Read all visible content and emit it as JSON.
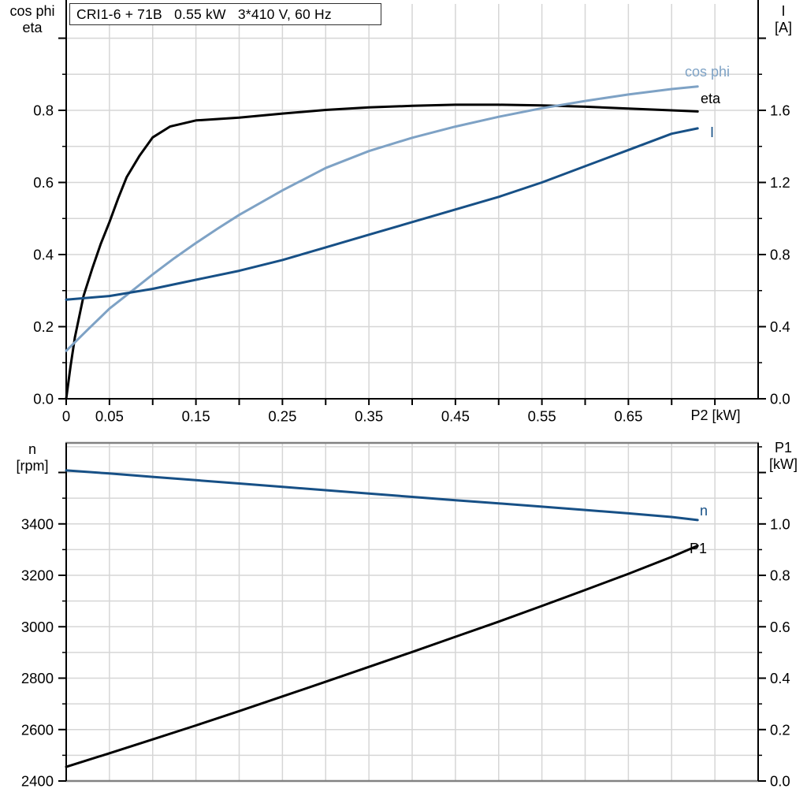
{
  "colors": {
    "eta_curve": "#000000",
    "cos_phi_curve": "#7ea2c5",
    "current_curve": "#175086",
    "speed_curve": "#175086",
    "p1_curve": "#000000",
    "grid": "#d6d6d6",
    "border_gray": "#828282",
    "axis_black": "#000000"
  },
  "chart_data": [
    {
      "type": "line",
      "title": "CRI1-6 + 71B   0.55 kW   3*410 V, 60 Hz",
      "xlabel": "P2 [kW]",
      "xlim": [
        0,
        0.8
      ],
      "ylim_left": [
        0,
        1.0951
      ],
      "ylim_right": [
        0,
        2.1902
      ],
      "legend_position": "curve-end-labels",
      "grid": true,
      "axes": {
        "x": {
          "label": "P2 [kW]",
          "ticks": [
            {
              "v": 0,
              "l": "0"
            },
            {
              "v": 0.05,
              "l": "0.05"
            },
            {
              "v": 0.1,
              "l": ""
            },
            {
              "v": 0.15,
              "l": "0.15"
            },
            {
              "v": 0.2,
              "l": ""
            },
            {
              "v": 0.25,
              "l": "0.25"
            },
            {
              "v": 0.3,
              "l": ""
            },
            {
              "v": 0.35,
              "l": "0.35"
            },
            {
              "v": 0.4,
              "l": ""
            },
            {
              "v": 0.45,
              "l": "0.45"
            },
            {
              "v": 0.5,
              "l": ""
            },
            {
              "v": 0.55,
              "l": "0.55"
            },
            {
              "v": 0.6,
              "l": ""
            },
            {
              "v": 0.65,
              "l": "0.65"
            },
            {
              "v": 0.7,
              "l": ""
            },
            {
              "v": 0.75,
              "l": ""
            }
          ]
        },
        "left": {
          "title_lines": [
            "cos phi",
            "eta"
          ],
          "ticks": [
            {
              "v": 0.0,
              "l": "0.0"
            },
            {
              "v": 0.2,
              "l": "0.2"
            },
            {
              "v": 0.4,
              "l": "0.4"
            },
            {
              "v": 0.6,
              "l": "0.6"
            },
            {
              "v": 0.8,
              "l": "0.8"
            },
            {
              "v": 1.0,
              "l": ""
            }
          ],
          "minor": [
            0.1,
            0.3,
            0.5,
            0.7,
            0.9
          ]
        },
        "right": {
          "title_lines": [
            "I",
            "[A]"
          ],
          "ticks": [
            {
              "v": 0.0,
              "l": "0.0"
            },
            {
              "v": 0.4,
              "l": "0.4"
            },
            {
              "v": 0.8,
              "l": "0.8"
            },
            {
              "v": 1.2,
              "l": "1.2"
            },
            {
              "v": 1.6,
              "l": "1.6"
            },
            {
              "v": 2.0,
              "l": ""
            }
          ],
          "minor": [
            0.2,
            0.6,
            1.0,
            1.4,
            1.8
          ]
        }
      },
      "series": [
        {
          "name": "eta",
          "axis": "left",
          "color": "#000000",
          "points": [
            [
              0,
              0
            ],
            [
              0.005,
              0.09
            ],
            [
              0.01,
              0.17
            ],
            [
              0.02,
              0.285
            ],
            [
              0.03,
              0.36
            ],
            [
              0.04,
              0.43
            ],
            [
              0.05,
              0.49
            ],
            [
              0.06,
              0.555
            ],
            [
              0.07,
              0.615
            ],
            [
              0.085,
              0.675
            ],
            [
              0.1,
              0.725
            ],
            [
              0.12,
              0.755
            ],
            [
              0.15,
              0.772
            ],
            [
              0.2,
              0.78
            ],
            [
              0.25,
              0.791
            ],
            [
              0.3,
              0.801
            ],
            [
              0.35,
              0.808
            ],
            [
              0.4,
              0.8125
            ],
            [
              0.45,
              0.8155
            ],
            [
              0.5,
              0.8155
            ],
            [
              0.55,
              0.8135
            ],
            [
              0.6,
              0.81
            ],
            [
              0.65,
              0.805
            ],
            [
              0.7,
              0.8
            ],
            [
              0.73,
              0.797
            ]
          ]
        },
        {
          "name": "cos phi",
          "axis": "left",
          "color": "#7ea2c5",
          "points": [
            [
              0,
              0.133
            ],
            [
              0.025,
              0.192
            ],
            [
              0.05,
              0.25
            ],
            [
              0.075,
              0.297
            ],
            [
              0.1,
              0.345
            ],
            [
              0.125,
              0.39
            ],
            [
              0.15,
              0.432
            ],
            [
              0.175,
              0.472
            ],
            [
              0.2,
              0.51
            ],
            [
              0.25,
              0.578
            ],
            [
              0.3,
              0.64
            ],
            [
              0.35,
              0.687
            ],
            [
              0.4,
              0.724
            ],
            [
              0.45,
              0.755
            ],
            [
              0.5,
              0.782
            ],
            [
              0.55,
              0.806
            ],
            [
              0.6,
              0.826
            ],
            [
              0.65,
              0.844
            ],
            [
              0.7,
              0.859
            ],
            [
              0.73,
              0.866
            ]
          ]
        },
        {
          "name": "I",
          "axis": "right",
          "color": "#175086",
          "points": [
            [
              0,
              0.55
            ],
            [
              0.05,
              0.57
            ],
            [
              0.1,
              0.61
            ],
            [
              0.15,
              0.66
            ],
            [
              0.2,
              0.71
            ],
            [
              0.25,
              0.77
            ],
            [
              0.3,
              0.84
            ],
            [
              0.35,
              0.91
            ],
            [
              0.4,
              0.98
            ],
            [
              0.45,
              1.05
            ],
            [
              0.5,
              1.12
            ],
            [
              0.55,
              1.2
            ],
            [
              0.6,
              1.29
            ],
            [
              0.65,
              1.38
            ],
            [
              0.7,
              1.47
            ],
            [
              0.73,
              1.5
            ]
          ]
        }
      ]
    },
    {
      "type": "line",
      "title": "",
      "xlabel": "",
      "xlim": [
        0,
        0.8
      ],
      "ylim_left": [
        2400,
        3715
      ],
      "ylim_right": [
        0,
        1.3152
      ],
      "legend_position": "curve-end-labels",
      "grid": true,
      "axes": {
        "x": {
          "label": "",
          "ticks": []
        },
        "left": {
          "title_lines": [
            "n",
            "[rpm]"
          ],
          "ticks": [
            {
              "v": 2400,
              "l": "2400"
            },
            {
              "v": 2600,
              "l": "2600"
            },
            {
              "v": 2800,
              "l": "2800"
            },
            {
              "v": 3000,
              "l": "3000"
            },
            {
              "v": 3200,
              "l": "3200"
            },
            {
              "v": 3400,
              "l": "3400"
            },
            {
              "v": 3600,
              "l": ""
            }
          ],
          "minor": [
            2500,
            2700,
            2900,
            3100,
            3300,
            3500
          ]
        },
        "right": {
          "title_lines": [
            "P1",
            "[kW]"
          ],
          "ticks": [
            {
              "v": 0.0,
              "l": "0.0"
            },
            {
              "v": 0.2,
              "l": "0.2"
            },
            {
              "v": 0.4,
              "l": "0.4"
            },
            {
              "v": 0.6,
              "l": "0.6"
            },
            {
              "v": 0.8,
              "l": "0.8"
            },
            {
              "v": 1.0,
              "l": "1.0"
            },
            {
              "v": 1.2,
              "l": ""
            }
          ],
          "minor": [
            0.1,
            0.3,
            0.5,
            0.7,
            0.9,
            1.1,
            1.3
          ]
        }
      },
      "series": [
        {
          "name": "n",
          "axis": "left",
          "color": "#175086",
          "points": [
            [
              0,
              3608
            ],
            [
              0.05,
              3596
            ],
            [
              0.1,
              3583
            ],
            [
              0.15,
              3570
            ],
            [
              0.2,
              3557
            ],
            [
              0.25,
              3544
            ],
            [
              0.3,
              3531
            ],
            [
              0.35,
              3518
            ],
            [
              0.4,
              3505
            ],
            [
              0.45,
              3492
            ],
            [
              0.5,
              3480
            ],
            [
              0.55,
              3467
            ],
            [
              0.6,
              3454
            ],
            [
              0.65,
              3441
            ],
            [
              0.7,
              3427
            ],
            [
              0.73,
              3415
            ]
          ]
        },
        {
          "name": "P1",
          "axis": "right",
          "color": "#000000",
          "points": [
            [
              0,
              0.055
            ],
            [
              0.05,
              0.108
            ],
            [
              0.1,
              0.162
            ],
            [
              0.15,
              0.216
            ],
            [
              0.2,
              0.272
            ],
            [
              0.25,
              0.329
            ],
            [
              0.3,
              0.386
            ],
            [
              0.35,
              0.444
            ],
            [
              0.4,
              0.502
            ],
            [
              0.45,
              0.561
            ],
            [
              0.5,
              0.62
            ],
            [
              0.55,
              0.681
            ],
            [
              0.6,
              0.743
            ],
            [
              0.65,
              0.806
            ],
            [
              0.7,
              0.872
            ],
            [
              0.73,
              0.915
            ]
          ]
        }
      ]
    }
  ]
}
